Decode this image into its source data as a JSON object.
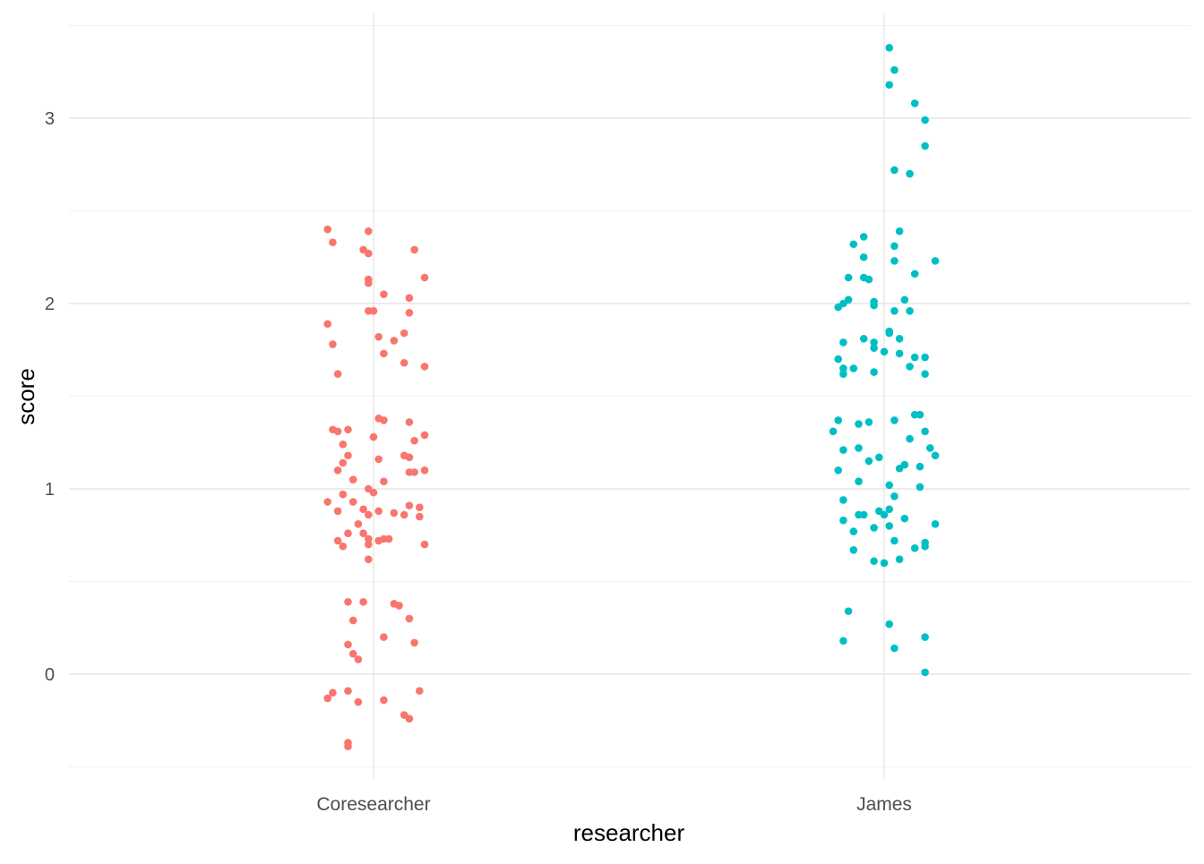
{
  "chart_data": {
    "type": "scatter",
    "subtype": "jitter",
    "title": "",
    "xlabel": "researcher",
    "ylabel": "score",
    "categories": [
      "Coresearcher",
      "James"
    ],
    "yticks": [
      0,
      1,
      2,
      3
    ],
    "ylim": [
      -0.55,
      3.57
    ],
    "grid": true,
    "legend": "none",
    "series": [
      {
        "name": "Coresearcher",
        "color": "#F8766D",
        "x": [
          0.91,
          0.92,
          0.99,
          0.98,
          0.99,
          1.08,
          1.1,
          0.99,
          0.99,
          1.02,
          1.07,
          0.91,
          0.99,
          1.0,
          1.07,
          0.92,
          1.01,
          1.04,
          1.06,
          1.02,
          1.06,
          1.1,
          0.93,
          0.92,
          0.93,
          0.95,
          1.01,
          1.02,
          1.07,
          0.94,
          1.0,
          1.08,
          1.1,
          0.95,
          1.01,
          1.06,
          1.07,
          0.93,
          0.94,
          1.07,
          1.08,
          1.1,
          0.96,
          1.02,
          0.99,
          1.0,
          0.94,
          0.91,
          0.96,
          0.98,
          1.07,
          1.09,
          0.93,
          0.99,
          1.01,
          1.04,
          1.06,
          1.09,
          0.97,
          0.95,
          0.98,
          0.99,
          1.02,
          1.01,
          1.03,
          0.93,
          0.99,
          0.94,
          1.1,
          0.99,
          0.95,
          0.98,
          1.04,
          1.05,
          0.96,
          1.07,
          1.02,
          0.95,
          1.08,
          0.96,
          0.97,
          0.91,
          0.92,
          0.95,
          1.09,
          0.97,
          1.02,
          1.06,
          1.07,
          0.95,
          0.95
        ],
        "y": [
          2.4,
          2.33,
          2.39,
          2.29,
          2.27,
          2.29,
          2.14,
          2.13,
          2.11,
          2.05,
          2.03,
          1.89,
          1.96,
          1.96,
          1.95,
          1.78,
          1.82,
          1.8,
          1.84,
          1.73,
          1.68,
          1.66,
          1.62,
          1.32,
          1.31,
          1.32,
          1.38,
          1.37,
          1.36,
          1.24,
          1.28,
          1.26,
          1.29,
          1.18,
          1.16,
          1.18,
          1.17,
          1.1,
          1.14,
          1.09,
          1.09,
          1.1,
          1.05,
          1.04,
          1.0,
          0.98,
          0.97,
          0.93,
          0.93,
          0.89,
          0.91,
          0.9,
          0.88,
          0.86,
          0.88,
          0.87,
          0.86,
          0.85,
          0.81,
          0.76,
          0.76,
          0.73,
          0.73,
          0.72,
          0.73,
          0.72,
          0.7,
          0.69,
          0.7,
          0.62,
          0.39,
          0.39,
          0.38,
          0.37,
          0.29,
          0.3,
          0.2,
          0.16,
          0.17,
          0.11,
          0.08,
          -0.13,
          -0.1,
          -0.09,
          -0.09,
          -0.15,
          -0.14,
          -0.22,
          -0.24,
          -0.37,
          -0.39
        ]
      },
      {
        "name": "James",
        "color": "#00BFC4",
        "x": [
          2.01,
          2.02,
          2.01,
          2.06,
          2.08,
          2.08,
          2.02,
          2.05,
          2.03,
          1.96,
          1.94,
          2.02,
          1.96,
          2.02,
          2.1,
          2.06,
          1.93,
          1.96,
          1.97,
          1.93,
          1.98,
          1.92,
          2.04,
          1.91,
          1.98,
          2.02,
          2.05,
          2.01,
          2.01,
          1.92,
          1.96,
          1.98,
          1.98,
          2.03,
          2.0,
          2.03,
          1.91,
          2.06,
          2.08,
          1.94,
          1.92,
          1.92,
          1.98,
          2.05,
          2.08,
          1.91,
          1.9,
          1.95,
          1.97,
          2.02,
          2.06,
          2.07,
          2.08,
          1.92,
          1.95,
          2.05,
          2.09,
          1.97,
          1.99,
          2.04,
          2.03,
          1.91,
          2.1,
          2.07,
          1.95,
          2.01,
          2.07,
          2.02,
          1.92,
          1.95,
          2.01,
          1.96,
          1.99,
          2.0,
          1.92,
          2.04,
          1.94,
          1.98,
          2.01,
          2.1,
          2.02,
          2.06,
          2.08,
          2.08,
          1.94,
          1.98,
          2.0,
          2.03,
          1.93,
          2.01,
          1.92,
          2.08,
          2.02,
          2.08
        ],
        "y": [
          3.38,
          3.26,
          3.18,
          3.08,
          2.99,
          2.85,
          2.72,
          2.7,
          2.39,
          2.36,
          2.32,
          2.31,
          2.25,
          2.23,
          2.23,
          2.16,
          2.14,
          2.14,
          2.13,
          2.02,
          2.01,
          2.0,
          2.02,
          1.98,
          1.99,
          1.96,
          1.96,
          1.84,
          1.85,
          1.79,
          1.81,
          1.79,
          1.76,
          1.81,
          1.74,
          1.73,
          1.7,
          1.71,
          1.71,
          1.65,
          1.65,
          1.62,
          1.63,
          1.66,
          1.62,
          1.37,
          1.31,
          1.35,
          1.36,
          1.37,
          1.4,
          1.4,
          1.31,
          1.21,
          1.22,
          1.27,
          1.22,
          1.15,
          1.17,
          1.13,
          1.11,
          1.1,
          1.18,
          1.12,
          1.04,
          1.02,
          1.01,
          0.96,
          0.94,
          0.86,
          0.89,
          0.86,
          0.88,
          0.86,
          0.83,
          0.84,
          0.77,
          0.79,
          0.8,
          0.81,
          0.72,
          0.68,
          0.71,
          0.69,
          0.67,
          0.61,
          0.6,
          0.62,
          0.34,
          0.27,
          0.18,
          0.2,
          0.14,
          0.01
        ]
      }
    ]
  }
}
